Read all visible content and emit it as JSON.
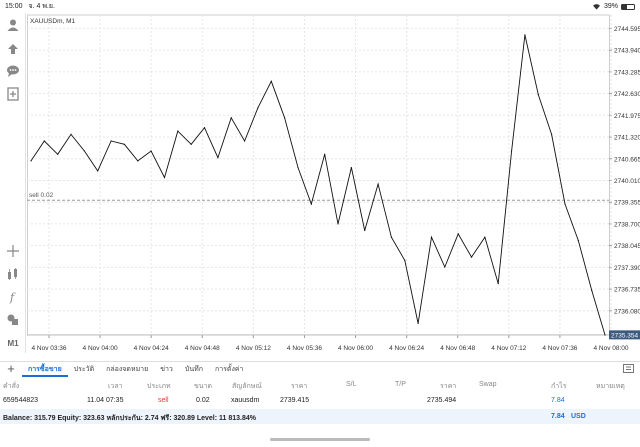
{
  "statusbar": {
    "time": "15:00",
    "date": "จ. 4 พ.ย.",
    "battery": "39%",
    "battery_level": 0.39
  },
  "toolbar": {
    "icons": [
      "account-icon",
      "transfer-icon",
      "chat-icon",
      "new-order-icon",
      "crosshair-icon",
      "indicators-icon",
      "function-icon",
      "objects-icon"
    ],
    "timeframe": "M1"
  },
  "chart": {
    "symbol_label": "XAUUSDm, M1",
    "order_label": "sell 0.02",
    "order_price": 2739.415,
    "current_price_label": "2735.354",
    "current_price": 2735.354,
    "y_ticks": [
      "2744.595",
      "2743.940",
      "2743.285",
      "2742.630",
      "2741.975",
      "2741.320",
      "2740.665",
      "2740.010",
      "2739.355",
      "2738.700",
      "2738.045",
      "2737.390",
      "2736.735",
      "2736.080"
    ],
    "x_ticks": [
      "4 Nov 03:36",
      "4 Nov 04:00",
      "4 Nov 04:24",
      "4 Nov 04:48",
      "4 Nov 05:12",
      "4 Nov 05:36",
      "4 Nov 06:00",
      "4 Nov 06:24",
      "4 Nov 06:48",
      "4 Nov 07:12",
      "4 Nov 07:36",
      "4 Nov 08:00"
    ]
  },
  "chart_data": {
    "type": "line",
    "title": "XAUUSDm, M1",
    "xlabel": "",
    "ylabel": "",
    "ylim": [
      2735.35,
      2745.0
    ],
    "grid": true,
    "x": [
      "03:36",
      "03:42",
      "03:48",
      "03:54",
      "04:00",
      "04:06",
      "04:12",
      "04:18",
      "04:24",
      "04:30",
      "04:36",
      "04:42",
      "04:48",
      "04:54",
      "05:00",
      "05:06",
      "05:12",
      "05:18",
      "05:24",
      "05:30",
      "05:36",
      "05:42",
      "05:48",
      "05:54",
      "06:00",
      "06:06",
      "06:12",
      "06:18",
      "06:24",
      "06:30",
      "06:36",
      "06:42",
      "06:48",
      "06:54",
      "07:00",
      "07:06",
      "07:12",
      "07:18",
      "07:24",
      "07:30",
      "07:36",
      "07:42",
      "07:48",
      "07:54"
    ],
    "series": [
      {
        "values": [
          2740.6,
          2741.2,
          2740.8,
          2741.4,
          2740.9,
          2740.3,
          2741.2,
          2741.1,
          2740.6,
          2740.9,
          2740.1,
          2741.5,
          2741.1,
          2741.6,
          2740.7,
          2741.9,
          2741.2,
          2742.2,
          2743.0,
          2741.9,
          2740.4,
          2739.3,
          2740.8,
          2738.7,
          2740.4,
          2738.5,
          2739.9,
          2738.3,
          2737.6,
          2735.7,
          2738.3,
          2737.4,
          2738.4,
          2737.7,
          2738.3,
          2736.9,
          2740.9,
          2744.4,
          2742.6,
          2741.4,
          2739.3,
          2738.2,
          2736.7,
          2735.35
        ]
      }
    ]
  },
  "tabs": [
    "การซื้อขาย",
    "ประวัติ",
    "กล่องจดหมาย",
    "ข่าว",
    "บันทึก",
    "การตั้งค่า"
  ],
  "table": {
    "headers": [
      "คำสั่ง",
      "เวลา",
      "ประเภท",
      "ขนาด",
      "สัญลักษณ์",
      "ราคา",
      "S/L",
      "T/P",
      "ราคา",
      "Swap",
      "กำไร",
      "หมายเหตุ"
    ],
    "row": {
      "order": "659544823",
      "time": "11.04 07:35",
      "type": "sell",
      "volume": "0.02",
      "symbol": "xauusdm",
      "open_price": "2739.415",
      "current_price": "2735.494",
      "profit": "7.84"
    }
  },
  "balance": {
    "text": "Balance: 315.79 Equity: 323.63 หลักประกัน: 2.74 ฟรี: 320.89 Level: 11 813.84%",
    "profit": "7.84",
    "currency": "USD"
  },
  "colors": {
    "accent": "#1a6fd6",
    "sell": "#e53935",
    "price_tag": "#3d5a80",
    "line": "#111111"
  }
}
